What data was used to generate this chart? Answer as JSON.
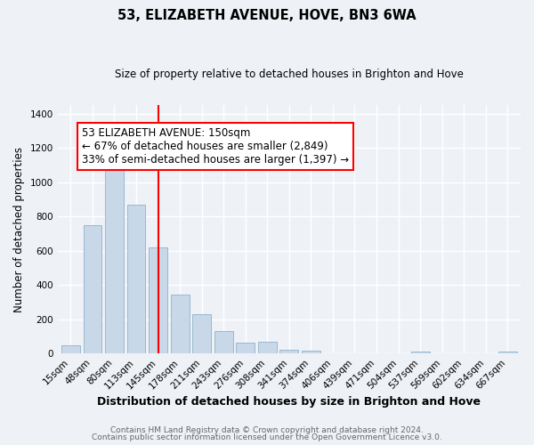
{
  "title": "53, ELIZABETH AVENUE, HOVE, BN3 6WA",
  "subtitle": "Size of property relative to detached houses in Brighton and Hove",
  "xlabel": "Distribution of detached houses by size in Brighton and Hove",
  "ylabel": "Number of detached properties",
  "bar_labels": [
    "15sqm",
    "48sqm",
    "80sqm",
    "113sqm",
    "145sqm",
    "178sqm",
    "211sqm",
    "243sqm",
    "276sqm",
    "308sqm",
    "341sqm",
    "374sqm",
    "406sqm",
    "439sqm",
    "471sqm",
    "504sqm",
    "537sqm",
    "569sqm",
    "602sqm",
    "634sqm",
    "667sqm"
  ],
  "bar_values": [
    50,
    750,
    1095,
    870,
    620,
    345,
    228,
    130,
    65,
    70,
    22,
    18,
    0,
    0,
    0,
    0,
    10,
    0,
    0,
    0,
    10
  ],
  "bar_color": "#c8d8e8",
  "bar_edge_color": "#9ab8ce",
  "vline_x_index": 4,
  "vline_color": "red",
  "annotation_lines": [
    "53 ELIZABETH AVENUE: 150sqm",
    "← 67% of detached houses are smaller (2,849)",
    "33% of semi-detached houses are larger (1,397) →"
  ],
  "box_color": "red",
  "ylim": [
    0,
    1450
  ],
  "yticks": [
    0,
    200,
    400,
    600,
    800,
    1000,
    1200,
    1400
  ],
  "footer_lines": [
    "Contains HM Land Registry data © Crown copyright and database right 2024.",
    "Contains public sector information licensed under the Open Government Licence v3.0."
  ],
  "background_color": "#eef2f7",
  "plot_background": "#eef2f7",
  "grid_color": "white",
  "title_fontsize": 10.5,
  "subtitle_fontsize": 8.5,
  "xlabel_fontsize": 9,
  "ylabel_fontsize": 8.5,
  "tick_fontsize": 7.5,
  "annotation_fontsize": 8.5,
  "footer_fontsize": 6.5
}
